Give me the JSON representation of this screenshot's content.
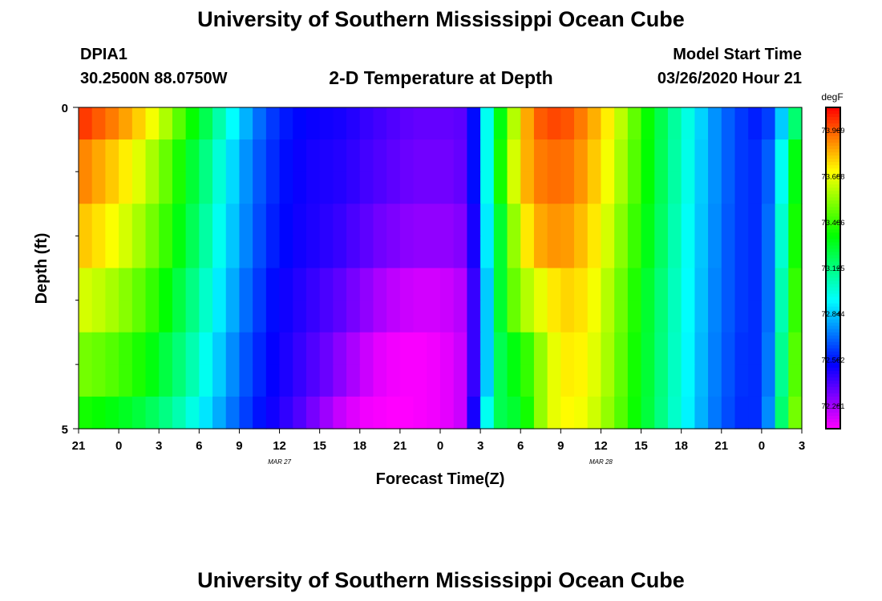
{
  "page": {
    "title_top": "University of Southern Mississippi Ocean Cube",
    "title_bottom": "University of Southern Mississippi Ocean Cube",
    "station": "DPIA1",
    "coords": "30.2500N 88.0750W",
    "plot_title": "2-D Temperature at Depth",
    "model_start_label": "Model Start Time",
    "model_start_value": "03/26/2020 Hour 21"
  },
  "chart_data": {
    "type": "heatmap",
    "title": "2-D Temperature at Depth",
    "xlabel": "Forecast Time(Z)",
    "ylabel": "Depth (ft)",
    "x_ticks": [
      "21",
      "0",
      "3",
      "6",
      "9",
      "12",
      "15",
      "18",
      "21",
      "0",
      "3",
      "6",
      "9",
      "12",
      "15",
      "18",
      "21",
      "0",
      "3"
    ],
    "date_labels": [
      {
        "text": "MAR  27",
        "at_tick": 5
      },
      {
        "text": "MAR  28",
        "at_tick": 13
      }
    ],
    "y_ticks": [
      "0",
      "5"
    ],
    "y_minor_count": 4,
    "ylim": [
      0,
      5
    ],
    "colorbar": {
      "unit": "degF",
      "min": 72.14,
      "max": 74.11,
      "labels": [
        "73.969",
        "73.688",
        "73.406",
        "73.125",
        "72.844",
        "72.562",
        "72.281"
      ]
    },
    "n_cols": 54,
    "row_index_per_depth_level": [
      0,
      1,
      1,
      2,
      2,
      3,
      3,
      4,
      4,
      5
    ],
    "temperature_rows": [
      [
        74.02,
        73.97,
        73.92,
        73.86,
        73.79,
        73.7,
        73.59,
        73.46,
        73.33,
        73.2,
        73.06,
        72.93,
        72.81,
        72.7,
        72.62,
        72.57,
        72.54,
        72.52,
        72.51,
        72.5,
        72.48,
        72.45,
        72.43,
        72.41,
        72.39,
        72.38,
        72.38,
        72.38,
        72.39,
        72.55,
        72.95,
        73.3,
        73.6,
        73.85,
        73.97,
        74.0,
        73.98,
        73.92,
        73.84,
        73.74,
        73.61,
        73.47,
        73.33,
        73.2,
        73.08,
        72.97,
        72.86,
        72.76,
        72.68,
        72.62,
        72.58,
        72.63,
        72.85,
        73.15
      ],
      [
        73.9,
        73.85,
        73.8,
        73.74,
        73.67,
        73.58,
        73.48,
        73.36,
        73.24,
        73.12,
        72.99,
        72.87,
        72.76,
        72.67,
        72.6,
        72.55,
        72.52,
        72.5,
        72.49,
        72.48,
        72.46,
        72.43,
        72.41,
        72.39,
        72.37,
        72.36,
        72.36,
        72.36,
        72.38,
        72.55,
        72.95,
        73.35,
        73.65,
        73.84,
        73.92,
        73.94,
        73.93,
        73.88,
        73.8,
        73.7,
        73.58,
        73.45,
        73.32,
        73.19,
        73.07,
        72.96,
        72.85,
        72.76,
        72.68,
        72.62,
        72.6,
        72.68,
        72.95,
        73.3
      ],
      [
        73.8,
        73.76,
        73.71,
        73.65,
        73.58,
        73.5,
        73.41,
        73.3,
        73.19,
        73.07,
        72.95,
        72.84,
        72.74,
        72.65,
        72.58,
        72.54,
        72.51,
        72.49,
        72.47,
        72.45,
        72.42,
        72.39,
        72.36,
        72.34,
        72.32,
        72.31,
        72.31,
        72.31,
        72.33,
        72.5,
        72.9,
        73.25,
        73.55,
        73.75,
        73.85,
        73.88,
        73.87,
        73.82,
        73.75,
        73.65,
        73.53,
        73.41,
        73.29,
        73.17,
        73.05,
        72.94,
        72.84,
        72.75,
        72.67,
        72.62,
        72.6,
        72.7,
        73.0,
        73.35
      ],
      [
        73.65,
        73.62,
        73.58,
        73.53,
        73.47,
        73.4,
        73.32,
        73.22,
        73.12,
        73.01,
        72.9,
        72.8,
        72.7,
        72.62,
        72.55,
        72.51,
        72.48,
        72.45,
        72.42,
        72.39,
        72.35,
        72.31,
        72.27,
        72.24,
        72.22,
        72.21,
        72.21,
        72.22,
        72.25,
        72.45,
        72.85,
        73.25,
        73.48,
        73.6,
        73.68,
        73.75,
        73.78,
        73.76,
        73.7,
        73.6,
        73.49,
        73.37,
        73.25,
        73.14,
        73.03,
        72.93,
        72.83,
        72.74,
        72.67,
        72.62,
        72.6,
        72.7,
        73.05,
        73.4
      ],
      [
        73.5,
        73.48,
        73.45,
        73.41,
        73.36,
        73.3,
        73.22,
        73.14,
        73.05,
        72.95,
        72.85,
        72.75,
        72.66,
        72.59,
        72.53,
        72.49,
        72.45,
        72.41,
        72.37,
        72.32,
        72.27,
        72.22,
        72.18,
        72.16,
        72.15,
        72.15,
        72.16,
        72.18,
        72.22,
        72.45,
        72.85,
        73.2,
        73.3,
        73.4,
        73.55,
        73.68,
        73.74,
        73.73,
        73.67,
        73.58,
        73.47,
        73.35,
        73.24,
        73.13,
        73.02,
        72.92,
        72.82,
        72.73,
        72.66,
        72.61,
        72.6,
        72.72,
        73.1,
        73.45
      ],
      [
        73.35,
        73.33,
        73.3,
        73.27,
        73.23,
        73.18,
        73.12,
        73.05,
        72.97,
        72.89,
        72.8,
        72.71,
        72.63,
        72.56,
        72.51,
        72.46,
        72.41,
        72.35,
        72.29,
        72.23,
        72.19,
        72.16,
        72.15,
        72.14,
        72.14,
        72.15,
        72.16,
        72.18,
        72.22,
        72.5,
        72.95,
        73.2,
        73.25,
        73.35,
        73.55,
        73.68,
        73.72,
        73.7,
        73.64,
        73.55,
        73.45,
        73.34,
        73.23,
        73.12,
        73.01,
        72.91,
        72.81,
        72.72,
        72.65,
        72.6,
        72.6,
        72.75,
        73.15,
        73.5
      ]
    ]
  }
}
